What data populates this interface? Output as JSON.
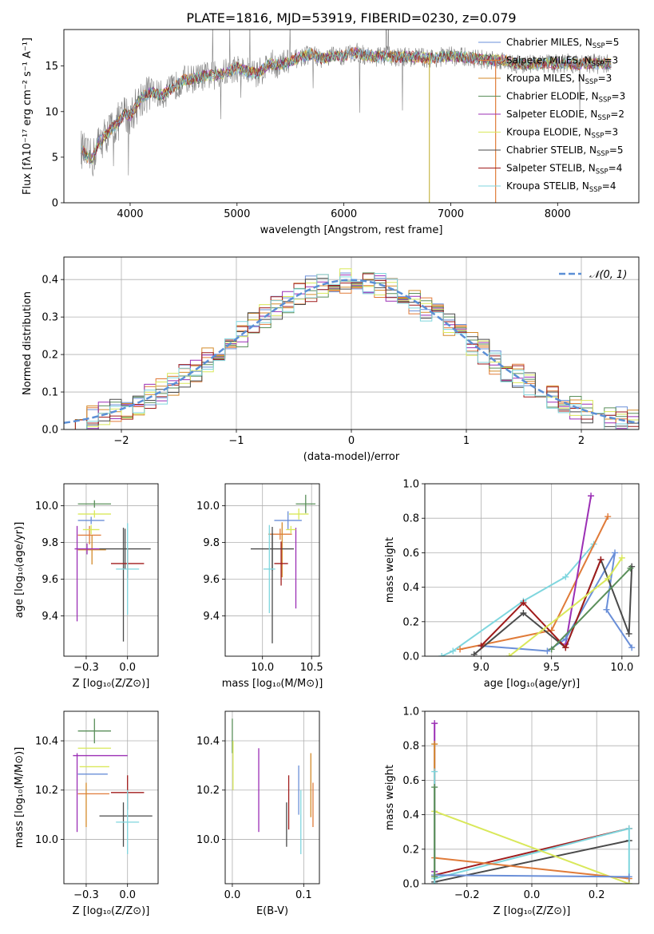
{
  "chart_data": [
    {
      "id": "spectrum",
      "type": "line",
      "title": "PLATE=1816, MJD=53919, FIBERID=0230, z=0.079",
      "xlabel": "wavelength [Angstrom, rest frame]",
      "ylabel": "Flux [fλ10⁻¹⁷ erg cm⁻² s⁻¹ A⁻¹]",
      "xlim": [
        3380,
        8760
      ],
      "ylim": [
        0,
        19
      ],
      "xticks": [
        4000,
        5000,
        6000,
        7000,
        8000
      ],
      "yticks": [
        0,
        5,
        10,
        15
      ],
      "data_series_name": "data",
      "data_color": "#808080",
      "data_anchor_points": [
        [
          3540,
          6.0
        ],
        [
          3600,
          5.0
        ],
        [
          3650,
          4.8
        ],
        [
          3700,
          6.5
        ],
        [
          3800,
          7.8
        ],
        [
          3900,
          9.0
        ],
        [
          3950,
          9.8
        ],
        [
          4000,
          9.5
        ],
        [
          4100,
          11.5
        ],
        [
          4200,
          12.2
        ],
        [
          4300,
          11.8
        ],
        [
          4400,
          12.6
        ],
        [
          4500,
          13.5
        ],
        [
          4600,
          13.6
        ],
        [
          4700,
          13.9
        ],
        [
          4800,
          14.0
        ],
        [
          4900,
          14.3
        ],
        [
          5000,
          14.8
        ],
        [
          5100,
          14.4
        ],
        [
          5200,
          14.2
        ],
        [
          5300,
          15.3
        ],
        [
          5400,
          15.1
        ],
        [
          5500,
          15.5
        ],
        [
          5600,
          16.0
        ],
        [
          5700,
          16.3
        ],
        [
          5800,
          15.8
        ],
        [
          5900,
          16.1
        ],
        [
          6000,
          16.1
        ],
        [
          6100,
          16.5
        ],
        [
          6200,
          16.2
        ],
        [
          6300,
          16.0
        ],
        [
          6400,
          16.1
        ],
        [
          6500,
          16.0
        ],
        [
          6600,
          16.0
        ],
        [
          6700,
          16.0
        ],
        [
          6800,
          15.8
        ],
        [
          6900,
          16.0
        ],
        [
          7000,
          16.1
        ],
        [
          7100,
          16.0
        ],
        [
          7200,
          15.9
        ],
        [
          7300,
          15.7
        ],
        [
          7400,
          15.6
        ],
        [
          7500,
          15.7
        ],
        [
          7600,
          15.3
        ],
        [
          7700,
          15.2
        ],
        [
          7800,
          15.2
        ],
        [
          7900,
          15.3
        ],
        [
          8000,
          15.2
        ],
        [
          8100,
          15.3
        ],
        [
          8200,
          15.2
        ],
        [
          8300,
          15.3
        ],
        [
          8400,
          15.2
        ],
        [
          8500,
          15.3
        ]
      ],
      "legend_position": "right",
      "legend": [
        {
          "label": "Chabrier MILES, N",
          "sub": "SSP",
          "suffix": "=5",
          "color": "#6a8fd8"
        },
        {
          "label": "Salpeter MILES, N",
          "sub": "SSP",
          "suffix": "=3",
          "color": "#e07b39"
        },
        {
          "label": "Kroupa MILES, N",
          "sub": "SSP",
          "suffix": "=3",
          "color": "#d48a2a"
        },
        {
          "label": "Chabrier ELODIE, N",
          "sub": "SSP",
          "suffix": "=3",
          "color": "#5a8f5a"
        },
        {
          "label": "Salpeter ELODIE, N",
          "sub": "SSP",
          "suffix": "=2",
          "color": "#9b2fb5"
        },
        {
          "label": "Kroupa ELODIE, N",
          "sub": "SSP",
          "suffix": "=3",
          "color": "#d9e85a"
        },
        {
          "label": "Chabrier STELIB, N",
          "sub": "SSP",
          "suffix": "=5",
          "color": "#4a4a4a"
        },
        {
          "label": "Salpeter STELIB, N",
          "sub": "SSP",
          "suffix": "=4",
          "color": "#a01c1c"
        },
        {
          "label": "Kroupa STELIB, N",
          "sub": "SSP",
          "suffix": "=4",
          "color": "#7fd6de"
        }
      ]
    },
    {
      "id": "residuals",
      "type": "histogram",
      "xlabel": "(data-model)/error",
      "ylabel": "Normed distribution",
      "xlim": [
        -2.5,
        2.5
      ],
      "ylim": [
        0,
        0.46
      ],
      "xticks": [
        -2,
        -1,
        0,
        1,
        2
      ],
      "yticks": [
        0.0,
        0.1,
        0.2,
        0.3,
        0.4
      ],
      "legend": {
        "label": "𝒩(0, 1)",
        "color": "#5b8fd6",
        "style": "dashed"
      },
      "gaussian": {
        "mean": 0,
        "sigma": 1
      }
    },
    {
      "id": "age_vs_Z",
      "type": "errorbar",
      "xlabel": "Z [log₁₀(Z/Z⊙)]",
      "ylabel": "age  [log₁₀(age/yr)]",
      "xlim": [
        -0.385,
        0.185
      ],
      "ylim": [
        9.18,
        10.12
      ],
      "xticks": [
        -0.25,
        0.0
      ],
      "yticks": [
        9.4,
        9.6,
        9.8,
        10.0
      ],
      "points": [
        {
          "model": "Chabrier ELODIE",
          "x": -0.2,
          "xerr": 0.1,
          "y": 10.01,
          "yerr": 0.02
        },
        {
          "model": "Kroupa ELODIE",
          "x": -0.2,
          "xerr": 0.1,
          "y": 9.955,
          "yerr": 0.02
        },
        {
          "model": "Chabrier MILES",
          "x": -0.22,
          "xerr": 0.08,
          "y": 9.92,
          "yerr": 0.02
        },
        {
          "model": "Salpeter MILES",
          "x": -0.23,
          "xerr": 0.07,
          "y": 9.84,
          "yerr": 0.05
        },
        {
          "model": "Kroupa MILES",
          "x": -0.215,
          "xerr": 0.085,
          "y": 9.76,
          "yerr": 0.08
        },
        {
          "model": "Salpeter ELODIE",
          "x": -0.245,
          "xerr": 0.075,
          "y": 9.765,
          "yerr": 0.03
        },
        {
          "model": "Kroupa ELODIE",
          "x": -0.22,
          "xerr": 0.05,
          "y": 9.87,
          "yerr": 0.025
        },
        {
          "model": "Salpeter ELODIE",
          "x": -0.305,
          "xerr": 0.0,
          "y": 9.63,
          "yerr": 0.26
        },
        {
          "model": "Chabrier STELIB",
          "x": -0.015,
          "xerr": 0.155,
          "y": 9.765,
          "yerr": 0.11
        },
        {
          "model": "Chabrier STELIB",
          "x": -0.025,
          "xerr": 0.0,
          "y": 9.57,
          "yerr": 0.31
        },
        {
          "model": "Salpeter STELIB",
          "x": 0.0,
          "xerr": 0.1,
          "y": 9.685,
          "yerr": 0.08
        },
        {
          "model": "Kroupa STELIB",
          "x": 0.0,
          "xerr": 0.07,
          "y": 9.655,
          "yerr": 0.25
        }
      ]
    },
    {
      "id": "age_vs_mass",
      "type": "errorbar",
      "xlabel": "mass [log₁₀(M/M⊙)]",
      "ylabel": "",
      "xlim": [
        9.62,
        10.58
      ],
      "ylim": [
        9.18,
        10.12
      ],
      "xticks": [
        10.0,
        10.5
      ],
      "yticks": [
        9.4,
        9.6,
        9.8,
        10.0
      ],
      "points": [
        {
          "model": "Chabrier ELODIE",
          "x": 10.44,
          "xerr": 0.1,
          "y": 10.01,
          "yerr": 0.05
        },
        {
          "model": "Kroupa ELODIE",
          "x": 10.37,
          "xerr": 0.1,
          "y": 9.955,
          "yerr": 0.03
        },
        {
          "model": "Chabrier MILES",
          "x": 10.26,
          "xerr": 0.14,
          "y": 9.92,
          "yerr": 0.05
        },
        {
          "model": "Salpeter MILES",
          "x": 10.18,
          "xerr": 0.12,
          "y": 9.845,
          "yerr": 0.03
        },
        {
          "model": "Kroupa MILES",
          "x": 10.2,
          "xerr": 0.0,
          "y": 9.76,
          "yerr": 0.15
        },
        {
          "model": "Salpeter ELODIE",
          "x": 10.34,
          "xerr": 0.0,
          "y": 9.66,
          "yerr": 0.22
        },
        {
          "model": "Chabrier STELIB",
          "x": 10.1,
          "xerr": 0.22,
          "y": 9.765,
          "yerr": 0.12
        },
        {
          "model": "Chabrier STELIB",
          "x": 10.1,
          "xerr": 0.0,
          "y": 9.55,
          "yerr": 0.3
        },
        {
          "model": "Salpeter STELIB",
          "x": 10.19,
          "xerr": 0.07,
          "y": 9.685,
          "yerr": 0.12
        },
        {
          "model": "Kroupa STELIB",
          "x": 10.07,
          "xerr": 0.06,
          "y": 9.655,
          "yerr": 0.24
        },
        {
          "model": "Kroupa ELODIE",
          "x": 10.29,
          "xerr": 0.05,
          "y": 9.87,
          "yerr": 0.02
        }
      ]
    },
    {
      "id": "mass_weight_vs_age",
      "type": "line",
      "xlabel": "age  [log₁₀(age/yr)]",
      "ylabel": "mass weight",
      "xlim": [
        8.6,
        10.12
      ],
      "ylim": [
        0,
        1.0
      ],
      "xticks": [
        9.0,
        9.5,
        10.0
      ],
      "yticks": [
        0.0,
        0.2,
        0.4,
        0.6,
        0.8,
        1.0
      ],
      "series": [
        {
          "model": "Kroupa STELIB",
          "x": [
            8.72,
            8.8,
            9.3,
            9.6,
            9.8
          ],
          "y": [
            0.0,
            0.03,
            0.32,
            0.46,
            0.65
          ]
        },
        {
          "model": "Salpeter MILES",
          "x": [
            8.85,
            9.5,
            9.9
          ],
          "y": [
            0.04,
            0.15,
            0.81
          ]
        },
        {
          "model": "Salpeter ELODIE",
          "x": [
            9.6,
            9.78
          ],
          "y": [
            0.07,
            0.93
          ]
        },
        {
          "model": "Chabrier MILES",
          "x": [
            9.0,
            9.47,
            9.6,
            9.95,
            9.89,
            10.07
          ],
          "y": [
            0.06,
            0.03,
            0.1,
            0.6,
            0.27,
            0.05
          ]
        },
        {
          "model": "Chabrier STELIB",
          "x": [
            8.95,
            9.3,
            9.6,
            9.85,
            10.05,
            10.07
          ],
          "y": [
            0.01,
            0.25,
            0.05,
            0.56,
            0.13,
            0.52
          ]
        },
        {
          "model": "Salpeter STELIB",
          "x": [
            9.0,
            9.3,
            9.6,
            9.85
          ],
          "y": [
            0.06,
            0.31,
            0.05,
            0.56
          ]
        },
        {
          "model": "Kroupa ELODIE",
          "x": [
            9.2,
            9.9,
            10.0
          ],
          "y": [
            0.0,
            0.45,
            0.57
          ]
        },
        {
          "model": "Chabrier ELODIE",
          "x": [
            9.5,
            10.06
          ],
          "y": [
            0.04,
            0.51
          ]
        }
      ]
    },
    {
      "id": "mass_vs_Z",
      "type": "errorbar",
      "xlabel": "Z [log₁₀(Z/Z⊙)]",
      "ylabel": "mass [log₁₀(M/M⊙)]",
      "xlim": [
        -0.385,
        0.185
      ],
      "ylim": [
        9.82,
        10.52
      ],
      "xticks": [
        -0.25,
        0.0
      ],
      "yticks": [
        10.0,
        10.2,
        10.4
      ],
      "points": [
        {
          "model": "Chabrier ELODIE",
          "x": -0.2,
          "xerr": 0.1,
          "y": 10.44,
          "yerr": 0.05
        },
        {
          "model": "Kroupa ELODIE",
          "x": -0.2,
          "xerr": 0.1,
          "y": 10.37,
          "yerr": 0.0
        },
        {
          "model": "Salpeter ELODIE",
          "x": -0.165,
          "xerr": 0.165,
          "y": 10.34,
          "yerr": 0.0
        },
        {
          "model": "Salpeter ELODIE",
          "x": -0.305,
          "xerr": 0.0,
          "y": 10.19,
          "yerr": 0.16
        },
        {
          "model": "Kroupa ELODIE",
          "x": -0.2,
          "xerr": 0.09,
          "y": 10.295,
          "yerr": 0.0
        },
        {
          "model": "Chabrier MILES",
          "x": -0.21,
          "xerr": 0.09,
          "y": 10.265,
          "yerr": 0.0
        },
        {
          "model": "Salpeter MILES",
          "x": -0.205,
          "xerr": 0.095,
          "y": 10.185,
          "yerr": 0.0
        },
        {
          "model": "Kroupa MILES",
          "x": -0.25,
          "xerr": 0.0,
          "y": 10.14,
          "yerr": 0.09
        },
        {
          "model": "Salpeter STELIB",
          "x": 0.0,
          "xerr": 0.1,
          "y": 10.19,
          "yerr": 0.07
        },
        {
          "model": "Chabrier STELIB",
          "x": -0.01,
          "xerr": 0.16,
          "y": 10.095,
          "yerr": 0.0
        },
        {
          "model": "Chabrier STELIB",
          "x": -0.025,
          "xerr": 0.0,
          "y": 10.06,
          "yerr": 0.09
        },
        {
          "model": "Kroupa STELIB",
          "x": 0.0,
          "xerr": 0.07,
          "y": 10.07,
          "yerr": 0.13
        }
      ]
    },
    {
      "id": "mass_vs_EBV",
      "type": "errorbar",
      "xlabel": "E(B-V)",
      "ylabel": "",
      "xlim": [
        -0.01,
        0.122
      ],
      "ylim": [
        9.82,
        10.52
      ],
      "xticks": [
        0.0,
        0.1
      ],
      "yticks": [
        10.0,
        10.2,
        10.4
      ],
      "points": [
        {
          "model": "Chabrier ELODIE",
          "x": 0.0,
          "xerr": 0.0,
          "y": 10.42,
          "yerr": 0.07
        },
        {
          "model": "Kroupa ELODIE",
          "x": 0.001,
          "xerr": 0.0,
          "y": 10.3,
          "yerr": 0.1
        },
        {
          "model": "Salpeter ELODIE",
          "x": 0.037,
          "xerr": 0.0,
          "y": 10.2,
          "yerr": 0.17
        },
        {
          "model": "Chabrier STELIB",
          "x": 0.076,
          "xerr": 0.0,
          "y": 10.06,
          "yerr": 0.09
        },
        {
          "model": "Salpeter STELIB",
          "x": 0.079,
          "xerr": 0.0,
          "y": 10.15,
          "yerr": 0.11
        },
        {
          "model": "Chabrier MILES",
          "x": 0.093,
          "xerr": 0.0,
          "y": 10.2,
          "yerr": 0.1
        },
        {
          "model": "Kroupa STELIB",
          "x": 0.096,
          "xerr": 0.0,
          "y": 10.07,
          "yerr": 0.13
        },
        {
          "model": "Salpeter MILES",
          "x": 0.113,
          "xerr": 0.0,
          "y": 10.14,
          "yerr": 0.09
        },
        {
          "model": "Kroupa MILES",
          "x": 0.11,
          "xerr": 0.0,
          "y": 10.22,
          "yerr": 0.13
        }
      ]
    },
    {
      "id": "mass_weight_vs_Z",
      "type": "line",
      "xlabel": "Z [log₁₀(Z/Z⊙)]",
      "ylabel": "mass weight",
      "xlim": [
        -0.33,
        0.33
      ],
      "ylim": [
        0,
        1.0
      ],
      "xticks": [
        -0.2,
        0.0,
        0.2
      ],
      "yticks": [
        0.0,
        0.2,
        0.4,
        0.6,
        0.8,
        1.0
      ],
      "series": [
        {
          "model": "Salpeter STELIB",
          "x": [
            -0.3,
            0.3
          ],
          "y": [
            0.05,
            0.32
          ]
        },
        {
          "model": "Chabrier STELIB",
          "x": [
            -0.3,
            0.3
          ],
          "y": [
            0.01,
            0.25
          ]
        },
        {
          "model": "Kroupa STELIB",
          "x": [
            -0.3,
            0.3,
            0.3
          ],
          "y": [
            0.03,
            0.32,
            0.0
          ]
        },
        {
          "model": "Kroupa ELODIE",
          "x": [
            -0.3,
            0.3
          ],
          "y": [
            0.42,
            0.0
          ]
        },
        {
          "model": "Salpeter MILES",
          "x": [
            -0.3,
            0.3
          ],
          "y": [
            0.15,
            0.03
          ]
        },
        {
          "model": "Chabrier MILES",
          "x": [
            -0.3,
            0.3
          ],
          "y": [
            0.05,
            0.04
          ]
        },
        {
          "model": "Salpeter ELODIE",
          "x": [
            -0.3,
            -0.3
          ],
          "y": [
            0.07,
            0.93
          ]
        },
        {
          "model": "Kroupa MILES",
          "x": [
            -0.3,
            -0.3
          ],
          "y": [
            0.04,
            0.81
          ]
        },
        {
          "model": "Kroupa STELIB",
          "x": [
            -0.3,
            -0.3
          ],
          "y": [
            0.0,
            0.65
          ]
        },
        {
          "model": "Chabrier ELODIE",
          "x": [
            -0.3,
            -0.3
          ],
          "y": [
            0.04,
            0.56
          ]
        }
      ]
    }
  ],
  "model_colors": {
    "Chabrier MILES": "#6a8fd8",
    "Salpeter MILES": "#e07b39",
    "Kroupa MILES": "#d48a2a",
    "Chabrier ELODIE": "#5a8f5a",
    "Salpeter ELODIE": "#9b2fb5",
    "Kroupa ELODIE": "#d9e85a",
    "Chabrier STELIB": "#4a4a4a",
    "Salpeter STELIB": "#a01c1c",
    "Kroupa STELIB": "#7fd6de"
  }
}
